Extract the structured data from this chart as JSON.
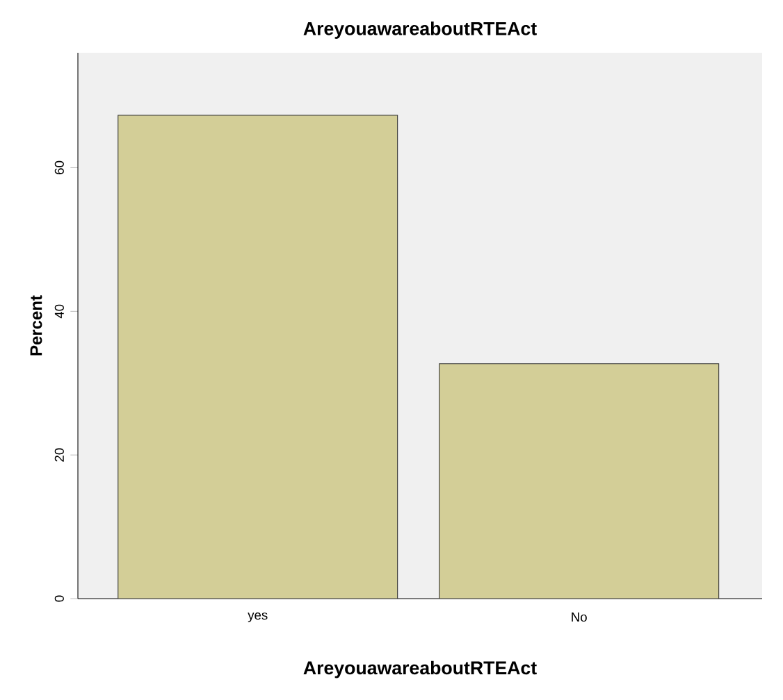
{
  "chart_data": {
    "type": "bar",
    "title": "AreyouawareaboutRTEAct",
    "xlabel": "AreyouawareaboutRTEAct",
    "ylabel": "Percent",
    "categories": [
      "yes",
      "No"
    ],
    "values": [
      67.3,
      32.7
    ],
    "color": "#d3ce97",
    "ylim": [
      0,
      76
    ],
    "yticks": [
      0,
      20,
      40,
      60
    ],
    "grid": false
  }
}
